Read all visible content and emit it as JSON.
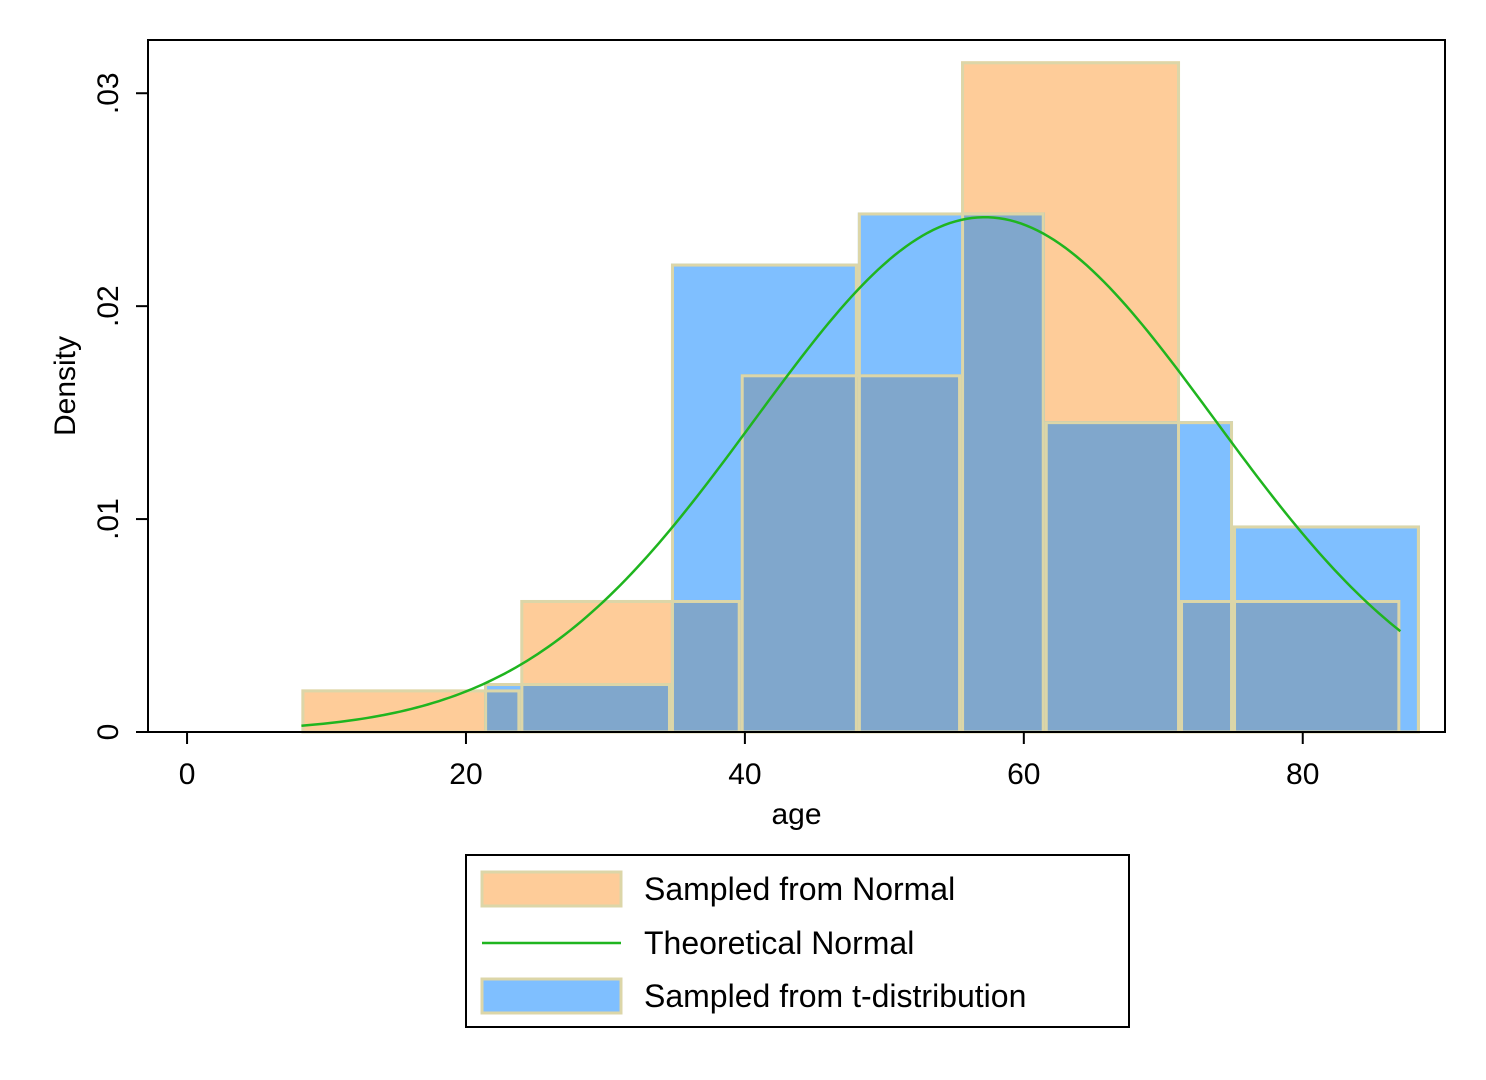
{
  "chart_data": {
    "type": "bar",
    "xlabel": "age",
    "ylabel": "Density",
    "xlim": [
      -2.8,
      90.2
    ],
    "ylim": [
      0,
      0.0325
    ],
    "x_ticks": [
      0,
      20,
      40,
      60,
      80
    ],
    "x_tick_labels": [
      "0",
      "20",
      "40",
      "60",
      "80"
    ],
    "y_ticks": [
      0,
      0.01,
      0.02,
      0.03
    ],
    "y_tick_labels": [
      "0",
      ".01",
      ".02",
      ".03"
    ],
    "grid": false,
    "legend_position": "bottom",
    "series": [
      {
        "name": "Sampled from Normal",
        "kind": "histogram",
        "color": "#FECC99",
        "edge_color": "#DCD6A8",
        "bins": [
          {
            "x0": 8.2,
            "x1": 23.9,
            "density": 0.002
          },
          {
            "x0": 23.9,
            "x1": 39.7,
            "density": 0.0062
          },
          {
            "x0": 39.7,
            "x1": 55.5,
            "density": 0.0168
          },
          {
            "x0": 55.5,
            "x1": 71.2,
            "density": 0.0315
          },
          {
            "x0": 71.2,
            "x1": 87.0,
            "density": 0.0062
          }
        ]
      },
      {
        "name": "Theoretical Normal",
        "kind": "line",
        "color": "#1FB51F",
        "mean": 57.2,
        "sd": 16.5,
        "x_range": [
          8.2,
          87.0
        ]
      },
      {
        "name": "Sampled from t-distribution",
        "kind": "histogram",
        "color": "#7FBFFF",
        "edge_color": "#DCD6A8",
        "bins": [
          {
            "x0": 21.3,
            "x1": 34.7,
            "density": 0.0023
          },
          {
            "x0": 34.7,
            "x1": 48.1,
            "density": 0.022
          },
          {
            "x0": 48.1,
            "x1": 61.5,
            "density": 0.0244
          },
          {
            "x0": 61.5,
            "x1": 75.0,
            "density": 0.0146
          },
          {
            "x0": 75.0,
            "x1": 88.4,
            "density": 0.0097
          }
        ]
      }
    ],
    "overlap_color": "#80A7CC"
  }
}
